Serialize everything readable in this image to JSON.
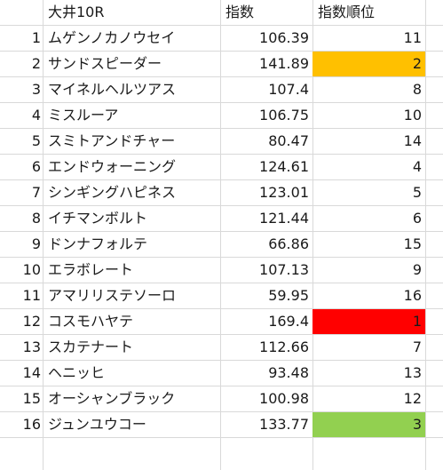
{
  "sheet": {
    "header": {
      "name_label": "大井10R",
      "index_label": "指数",
      "rank_label": "指数順位"
    },
    "rows": [
      {
        "no": "1",
        "name": "ムゲンノカノウセイ",
        "index": "106.39",
        "rank": "11",
        "highlight": ""
      },
      {
        "no": "2",
        "name": "サンドスピーダー",
        "index": "141.89",
        "rank": "2",
        "highlight": "orange"
      },
      {
        "no": "3",
        "name": "マイネルヘルツアス",
        "index": "107.4",
        "rank": "8",
        "highlight": ""
      },
      {
        "no": "4",
        "name": "ミスルーア",
        "index": "106.75",
        "rank": "10",
        "highlight": ""
      },
      {
        "no": "5",
        "name": "スミトアンドチャー",
        "index": "80.47",
        "rank": "14",
        "highlight": ""
      },
      {
        "no": "6",
        "name": "エンドウォーニング",
        "index": "124.61",
        "rank": "4",
        "highlight": ""
      },
      {
        "no": "7",
        "name": "シンギングハピネス",
        "index": "123.01",
        "rank": "5",
        "highlight": ""
      },
      {
        "no": "8",
        "name": "イチマンボルト",
        "index": "121.44",
        "rank": "6",
        "highlight": ""
      },
      {
        "no": "9",
        "name": "ドンナフォルテ",
        "index": "66.86",
        "rank": "15",
        "highlight": ""
      },
      {
        "no": "10",
        "name": "エラボレート",
        "index": "107.13",
        "rank": "9",
        "highlight": ""
      },
      {
        "no": "11",
        "name": "アマリリステソーロ",
        "index": "59.95",
        "rank": "16",
        "highlight": ""
      },
      {
        "no": "12",
        "name": "コスモハヤテ",
        "index": "169.4",
        "rank": "1",
        "highlight": "red"
      },
      {
        "no": "13",
        "name": "スカテナート",
        "index": "112.66",
        "rank": "7",
        "highlight": ""
      },
      {
        "no": "14",
        "name": "ヘニッヒ",
        "index": "93.48",
        "rank": "13",
        "highlight": ""
      },
      {
        "no": "15",
        "name": "オーシャンブラック",
        "index": "100.98",
        "rank": "12",
        "highlight": ""
      },
      {
        "no": "16",
        "name": "ジュンユウコー",
        "index": "133.77",
        "rank": "3",
        "highlight": "green"
      }
    ],
    "colors": {
      "orange": "#ffc000",
      "red": "#ff0000",
      "green": "#92d050",
      "gridline": "#d9d9d9"
    }
  }
}
